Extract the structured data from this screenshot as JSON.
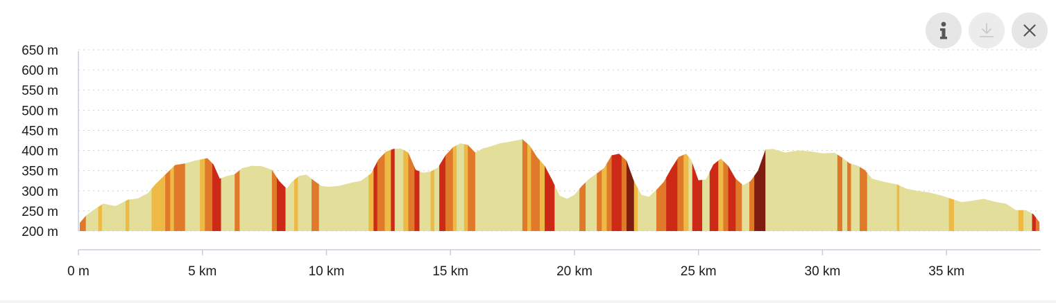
{
  "controls": {
    "info_icon": "info-icon",
    "download_icon": "download-icon",
    "close_icon": "close-icon"
  },
  "colors": {
    "grade_flat": "#e3df9a",
    "grade_gentle": "#edba45",
    "grade_moderate": "#e07a2a",
    "grade_steep": "#cc2a17",
    "grade_very_steep": "#7e1e10",
    "axis": "#c5cddc",
    "gridline": "#cfcfcf"
  },
  "chart_data": {
    "type": "area",
    "title": "",
    "xlabel": "",
    "ylabel": "",
    "xlim": [
      0,
      38.8
    ],
    "ylim": [
      200,
      650
    ],
    "grid": true,
    "y_ticks": [
      {
        "value": 650,
        "label": "650 m"
      },
      {
        "value": 600,
        "label": "600 m"
      },
      {
        "value": 550,
        "label": "550 m"
      },
      {
        "value": 500,
        "label": "500 m"
      },
      {
        "value": 450,
        "label": "450 m"
      },
      {
        "value": 400,
        "label": "400 m"
      },
      {
        "value": 350,
        "label": "350 m"
      },
      {
        "value": 300,
        "label": "300 m"
      },
      {
        "value": 250,
        "label": "250 m"
      },
      {
        "value": 200,
        "label": "200 m"
      }
    ],
    "x_ticks": [
      {
        "value": 0,
        "label": "0 m"
      },
      {
        "value": 5,
        "label": "5 km"
      },
      {
        "value": 10,
        "label": "10 km"
      },
      {
        "value": 15,
        "label": "15 km"
      },
      {
        "value": 20,
        "label": "20 km"
      },
      {
        "value": 25,
        "label": "25 km"
      },
      {
        "value": 30,
        "label": "30 km"
      },
      {
        "value": 35,
        "label": "35 km"
      }
    ],
    "series": [
      {
        "x": [
          0.05,
          0.3,
          0.6,
          1.0,
          1.5,
          2.0,
          2.4,
          2.8,
          3.1,
          3.5,
          3.9,
          4.3,
          4.7,
          5.2,
          5.45,
          5.7,
          6.0,
          6.3,
          6.6,
          7.0,
          7.4,
          7.8,
          8.1,
          8.4,
          8.6,
          8.9,
          9.2,
          9.5,
          9.8,
          10.1,
          10.5,
          11.0,
          11.4,
          11.8,
          12.1,
          12.4,
          12.7,
          13.0,
          13.3,
          13.6,
          13.9,
          14.2,
          14.5,
          14.8,
          15.1,
          15.4,
          15.7,
          16.0,
          16.3,
          16.6,
          17.0,
          17.4,
          17.9,
          18.2,
          18.5,
          18.8,
          19.1,
          19.4,
          19.7,
          20.0,
          20.3,
          20.6,
          20.9,
          21.2,
          21.5,
          21.8,
          22.1,
          22.4,
          22.7,
          23.0,
          23.3,
          23.6,
          23.9,
          24.2,
          24.5,
          24.7,
          25.0,
          25.3,
          25.6,
          25.9,
          26.2,
          26.5,
          26.8,
          27.1,
          27.4,
          27.7,
          28.0,
          28.5,
          29.0,
          29.5,
          30.0,
          30.5,
          30.8,
          31.1,
          31.4,
          31.7,
          32.0,
          32.5,
          33.0,
          33.4,
          33.8,
          34.3,
          34.8,
          35.2,
          35.6,
          36.0,
          36.5,
          37.0,
          37.4,
          37.8,
          38.2,
          38.5,
          38.75
        ],
        "y": [
          220,
          238,
          252,
          268,
          262,
          278,
          281,
          294,
          316,
          340,
          364,
          368,
          375,
          381,
          365,
          330,
          337,
          341,
          356,
          362,
          361,
          352,
          324,
          305,
          322,
          337,
          340,
          325,
          312,
          310,
          312,
          320,
          325,
          343,
          378,
          397,
          404,
          405,
          395,
          352,
          345,
          348,
          358,
          388,
          408,
          418,
          414,
          395,
          405,
          410,
          418,
          422,
          428,
          412,
          383,
          362,
          327,
          288,
          280,
          290,
          312,
          330,
          343,
          357,
          388,
          392,
          375,
          324,
          290,
          285,
          302,
          322,
          355,
          384,
          392,
          378,
          326,
          328,
          365,
          380,
          362,
          330,
          314,
          324,
          350,
          402,
          404,
          395,
          400,
          398,
          393,
          394,
          382,
          368,
          363,
          352,
          330,
          322,
          316,
          305,
          300,
          296,
          288,
          280,
          272,
          275,
          280,
          272,
          268,
          252,
          252,
          242,
          222
        ]
      }
    ],
    "grade_bands": [
      {
        "x0": 0.05,
        "x1": 0.3,
        "grade": "moderate"
      },
      {
        "x0": 0.3,
        "x1": 0.8,
        "grade": "flat"
      },
      {
        "x0": 0.8,
        "x1": 0.95,
        "grade": "gentle"
      },
      {
        "x0": 0.95,
        "x1": 1.9,
        "grade": "flat"
      },
      {
        "x0": 1.9,
        "x1": 2.05,
        "grade": "gentle"
      },
      {
        "x0": 2.05,
        "x1": 2.95,
        "grade": "flat"
      },
      {
        "x0": 2.95,
        "x1": 3.5,
        "grade": "gentle"
      },
      {
        "x0": 3.5,
        "x1": 3.7,
        "grade": "moderate"
      },
      {
        "x0": 3.7,
        "x1": 3.85,
        "grade": "gentle"
      },
      {
        "x0": 3.85,
        "x1": 4.3,
        "grade": "moderate"
      },
      {
        "x0": 4.3,
        "x1": 4.9,
        "grade": "flat"
      },
      {
        "x0": 4.9,
        "x1": 5.1,
        "grade": "gentle"
      },
      {
        "x0": 5.1,
        "x1": 5.4,
        "grade": "moderate"
      },
      {
        "x0": 5.4,
        "x1": 5.75,
        "grade": "steep"
      },
      {
        "x0": 5.75,
        "x1": 6.3,
        "grade": "flat"
      },
      {
        "x0": 6.3,
        "x1": 6.5,
        "grade": "moderate"
      },
      {
        "x0": 6.5,
        "x1": 7.8,
        "grade": "flat"
      },
      {
        "x0": 7.8,
        "x1": 8.0,
        "grade": "moderate"
      },
      {
        "x0": 8.0,
        "x1": 8.35,
        "grade": "steep"
      },
      {
        "x0": 8.35,
        "x1": 8.7,
        "grade": "flat"
      },
      {
        "x0": 8.7,
        "x1": 8.85,
        "grade": "gentle"
      },
      {
        "x0": 8.85,
        "x1": 9.4,
        "grade": "flat"
      },
      {
        "x0": 9.4,
        "x1": 9.7,
        "grade": "moderate"
      },
      {
        "x0": 9.7,
        "x1": 11.7,
        "grade": "flat"
      },
      {
        "x0": 11.7,
        "x1": 11.9,
        "grade": "gentle"
      },
      {
        "x0": 11.9,
        "x1": 12.05,
        "grade": "steep"
      },
      {
        "x0": 12.05,
        "x1": 12.35,
        "grade": "moderate"
      },
      {
        "x0": 12.35,
        "x1": 12.6,
        "grade": "gentle"
      },
      {
        "x0": 12.6,
        "x1": 12.75,
        "grade": "steep"
      },
      {
        "x0": 12.75,
        "x1": 13.1,
        "grade": "flat"
      },
      {
        "x0": 13.1,
        "x1": 13.3,
        "grade": "gentle"
      },
      {
        "x0": 13.3,
        "x1": 13.55,
        "grade": "moderate"
      },
      {
        "x0": 13.55,
        "x1": 13.75,
        "grade": "steep"
      },
      {
        "x0": 13.75,
        "x1": 14.2,
        "grade": "flat"
      },
      {
        "x0": 14.2,
        "x1": 14.35,
        "grade": "gentle"
      },
      {
        "x0": 14.35,
        "x1": 14.55,
        "grade": "flat"
      },
      {
        "x0": 14.55,
        "x1": 14.8,
        "grade": "steep"
      },
      {
        "x0": 14.8,
        "x1": 15.1,
        "grade": "moderate"
      },
      {
        "x0": 15.1,
        "x1": 15.25,
        "grade": "gentle"
      },
      {
        "x0": 15.25,
        "x1": 15.55,
        "grade": "flat"
      },
      {
        "x0": 15.55,
        "x1": 15.7,
        "grade": "gentle"
      },
      {
        "x0": 15.7,
        "x1": 16.0,
        "grade": "moderate"
      },
      {
        "x0": 16.0,
        "x1": 17.9,
        "grade": "flat"
      },
      {
        "x0": 17.9,
        "x1": 18.1,
        "grade": "moderate"
      },
      {
        "x0": 18.1,
        "x1": 18.25,
        "grade": "gentle"
      },
      {
        "x0": 18.25,
        "x1": 18.6,
        "grade": "moderate"
      },
      {
        "x0": 18.6,
        "x1": 18.8,
        "grade": "gentle"
      },
      {
        "x0": 18.8,
        "x1": 19.2,
        "grade": "steep"
      },
      {
        "x0": 19.2,
        "x1": 20.2,
        "grade": "flat"
      },
      {
        "x0": 20.2,
        "x1": 20.45,
        "grade": "moderate"
      },
      {
        "x0": 20.45,
        "x1": 20.9,
        "grade": "flat"
      },
      {
        "x0": 20.9,
        "x1": 21.1,
        "grade": "moderate"
      },
      {
        "x0": 21.1,
        "x1": 21.3,
        "grade": "gentle"
      },
      {
        "x0": 21.3,
        "x1": 21.5,
        "grade": "moderate"
      },
      {
        "x0": 21.5,
        "x1": 21.9,
        "grade": "steep"
      },
      {
        "x0": 21.9,
        "x1": 22.1,
        "grade": "moderate"
      },
      {
        "x0": 22.1,
        "x1": 22.4,
        "grade": "very_steep"
      },
      {
        "x0": 22.4,
        "x1": 22.55,
        "grade": "gentle"
      },
      {
        "x0": 22.55,
        "x1": 23.3,
        "grade": "flat"
      },
      {
        "x0": 23.3,
        "x1": 23.7,
        "grade": "moderate"
      },
      {
        "x0": 23.7,
        "x1": 24.15,
        "grade": "steep"
      },
      {
        "x0": 24.15,
        "x1": 24.4,
        "grade": "moderate"
      },
      {
        "x0": 24.4,
        "x1": 24.6,
        "grade": "gentle"
      },
      {
        "x0": 24.6,
        "x1": 24.75,
        "grade": "flat"
      },
      {
        "x0": 24.75,
        "x1": 25.15,
        "grade": "steep"
      },
      {
        "x0": 25.15,
        "x1": 25.45,
        "grade": "flat"
      },
      {
        "x0": 25.45,
        "x1": 25.8,
        "grade": "steep"
      },
      {
        "x0": 25.8,
        "x1": 26.0,
        "grade": "gentle"
      },
      {
        "x0": 26.0,
        "x1": 26.2,
        "grade": "moderate"
      },
      {
        "x0": 26.2,
        "x1": 26.5,
        "grade": "steep"
      },
      {
        "x0": 26.5,
        "x1": 26.75,
        "grade": "moderate"
      },
      {
        "x0": 26.75,
        "x1": 27.05,
        "grade": "flat"
      },
      {
        "x0": 27.05,
        "x1": 27.25,
        "grade": "moderate"
      },
      {
        "x0": 27.25,
        "x1": 27.7,
        "grade": "very_steep"
      },
      {
        "x0": 27.7,
        "x1": 30.6,
        "grade": "flat"
      },
      {
        "x0": 30.6,
        "x1": 30.8,
        "grade": "moderate"
      },
      {
        "x0": 30.8,
        "x1": 31.0,
        "grade": "flat"
      },
      {
        "x0": 31.0,
        "x1": 31.15,
        "grade": "moderate"
      },
      {
        "x0": 31.15,
        "x1": 31.5,
        "grade": "flat"
      },
      {
        "x0": 31.5,
        "x1": 31.8,
        "grade": "moderate"
      },
      {
        "x0": 31.8,
        "x1": 33.0,
        "grade": "flat"
      },
      {
        "x0": 33.0,
        "x1": 33.1,
        "grade": "gentle"
      },
      {
        "x0": 33.1,
        "x1": 35.1,
        "grade": "flat"
      },
      {
        "x0": 35.1,
        "x1": 35.3,
        "grade": "gentle"
      },
      {
        "x0": 35.3,
        "x1": 37.9,
        "grade": "flat"
      },
      {
        "x0": 37.9,
        "x1": 38.1,
        "grade": "gentle"
      },
      {
        "x0": 38.1,
        "x1": 38.45,
        "grade": "flat"
      },
      {
        "x0": 38.45,
        "x1": 38.6,
        "grade": "steep"
      },
      {
        "x0": 38.6,
        "x1": 38.75,
        "grade": "moderate"
      }
    ]
  }
}
